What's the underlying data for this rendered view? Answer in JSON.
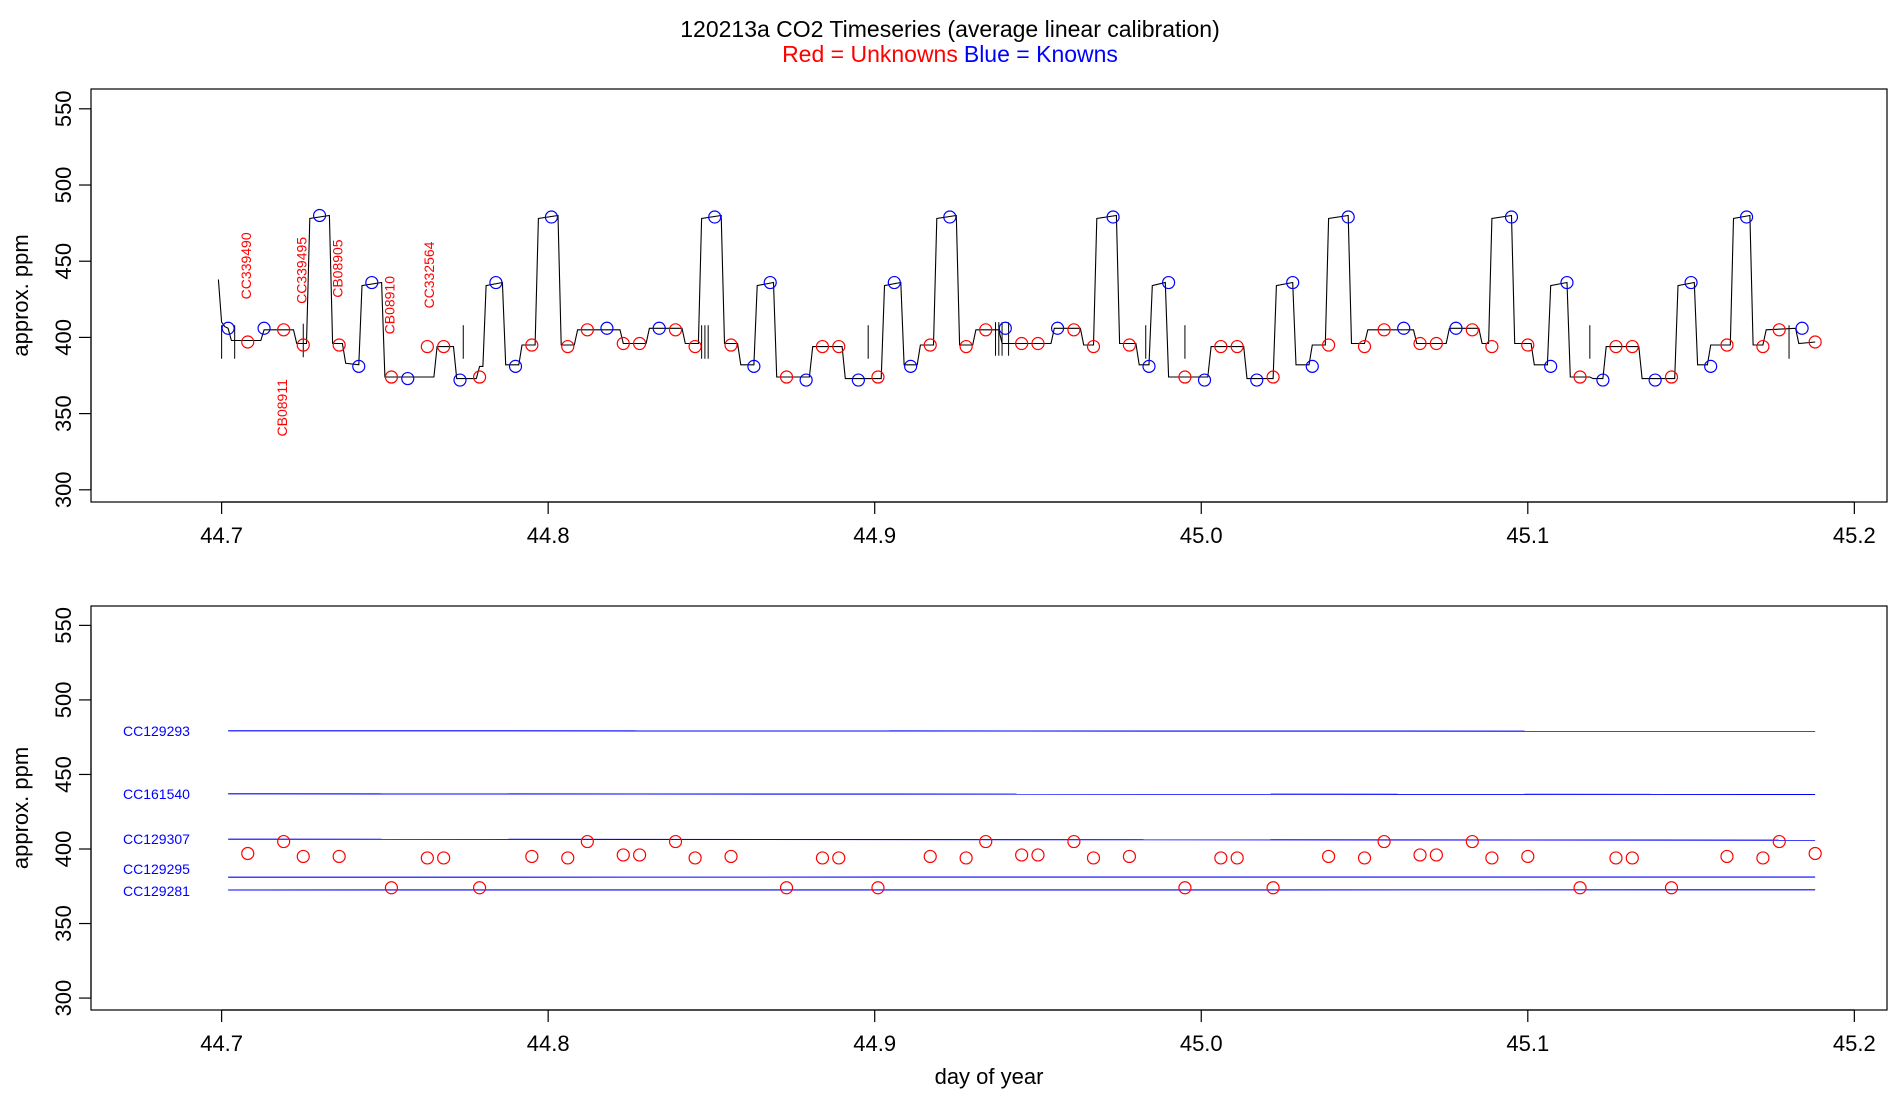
{
  "title": "120213a   CO2 Timeseries (average linear calibration)",
  "subtitle_red": "Red = Unknowns",
  "subtitle_blue": "Blue = Knowns",
  "colors": {
    "unknown": "#ff0000",
    "known": "#0000ff",
    "trace": "#000000"
  },
  "chart_data": [
    {
      "type": "line",
      "panel": "top",
      "xlabel": "",
      "ylabel": "approx. ppm",
      "xlim": [
        44.66,
        45.21
      ],
      "ylim": [
        292,
        563
      ],
      "xticks": [
        "44.7",
        "44.8",
        "44.9",
        "45.0",
        "45.1",
        "45.2"
      ],
      "yticks": [
        "300",
        "350",
        "400",
        "450",
        "500",
        "550"
      ],
      "grid": false,
      "trace": [
        [
          44.699,
          438
        ],
        [
          44.7,
          410
        ],
        [
          44.701,
          407
        ],
        [
          44.702,
          406
        ],
        [
          44.703,
          398
        ],
        [
          44.712,
          398
        ],
        [
          44.713,
          405
        ],
        [
          44.722,
          405
        ],
        [
          44.723,
          396
        ],
        [
          44.726,
          396
        ],
        [
          44.727,
          478
        ],
        [
          44.733,
          480
        ],
        [
          44.734,
          396
        ],
        [
          44.737,
          396
        ],
        [
          44.738,
          383
        ],
        [
          44.742,
          382
        ],
        [
          44.743,
          434
        ],
        [
          44.749,
          436
        ],
        [
          44.75,
          374
        ],
        [
          44.765,
          374
        ],
        [
          44.766,
          394
        ],
        [
          44.771,
          394
        ],
        [
          44.772,
          373
        ],
        [
          44.778,
          373
        ],
        [
          44.779,
          381
        ],
        [
          44.78,
          381
        ],
        [
          44.781,
          434
        ],
        [
          44.786,
          436
        ],
        [
          44.787,
          382
        ],
        [
          44.791,
          382
        ],
        [
          44.792,
          395
        ],
        [
          44.796,
          395
        ],
        [
          44.797,
          478
        ],
        [
          44.803,
          480
        ],
        [
          44.804,
          395
        ],
        [
          44.808,
          395
        ],
        [
          44.809,
          405
        ],
        [
          44.822,
          405
        ],
        [
          44.823,
          396
        ],
        [
          44.83,
          396
        ],
        [
          44.831,
          406
        ],
        [
          44.841,
          406
        ],
        [
          44.842,
          396
        ],
        [
          44.846,
          396
        ],
        [
          44.847,
          478
        ],
        [
          44.853,
          480
        ],
        [
          44.854,
          396
        ],
        [
          44.858,
          396
        ],
        [
          44.859,
          382
        ],
        [
          44.863,
          382
        ],
        [
          44.864,
          434
        ],
        [
          44.869,
          436
        ],
        [
          44.87,
          374
        ],
        [
          44.88,
          374
        ],
        [
          44.881,
          394
        ],
        [
          44.89,
          394
        ],
        [
          44.891,
          373
        ],
        [
          44.902,
          373
        ],
        [
          44.903,
          434
        ],
        [
          44.908,
          436
        ],
        [
          44.909,
          382
        ],
        [
          44.913,
          382
        ],
        [
          44.914,
          395
        ],
        [
          44.918,
          395
        ],
        [
          44.919,
          478
        ],
        [
          44.925,
          480
        ],
        [
          44.926,
          395
        ],
        [
          44.93,
          395
        ],
        [
          44.931,
          405
        ],
        [
          44.938,
          405
        ],
        [
          44.939,
          396
        ],
        [
          44.954,
          396
        ],
        [
          44.955,
          406
        ],
        [
          44.963,
          406
        ],
        [
          44.964,
          395
        ],
        [
          44.967,
          395
        ],
        [
          44.968,
          478
        ],
        [
          44.974,
          480
        ],
        [
          44.975,
          396
        ],
        [
          44.98,
          396
        ],
        [
          44.981,
          382
        ],
        [
          44.984,
          382
        ],
        [
          44.985,
          434
        ],
        [
          44.989,
          436
        ],
        [
          44.99,
          374
        ],
        [
          45.002,
          374
        ],
        [
          45.003,
          394
        ],
        [
          45.013,
          394
        ],
        [
          45.014,
          373
        ],
        [
          45.022,
          373
        ],
        [
          45.023,
          434
        ],
        [
          45.028,
          436
        ],
        [
          45.029,
          382
        ],
        [
          45.033,
          382
        ],
        [
          45.034,
          395
        ],
        [
          45.038,
          395
        ],
        [
          45.039,
          478
        ],
        [
          45.045,
          480
        ],
        [
          45.046,
          396
        ],
        [
          45.05,
          396
        ],
        [
          45.051,
          405
        ],
        [
          45.065,
          405
        ],
        [
          45.066,
          396
        ],
        [
          45.075,
          396
        ],
        [
          45.076,
          406
        ],
        [
          45.085,
          406
        ],
        [
          45.086,
          396
        ],
        [
          45.088,
          396
        ],
        [
          45.089,
          478
        ],
        [
          45.095,
          480
        ],
        [
          45.096,
          396
        ],
        [
          45.101,
          396
        ],
        [
          45.102,
          382
        ],
        [
          45.106,
          382
        ],
        [
          45.107,
          434
        ],
        [
          45.112,
          436
        ],
        [
          45.113,
          374
        ],
        [
          45.119,
          374
        ],
        [
          45.12,
          373
        ],
        [
          45.123,
          373
        ],
        [
          45.124,
          394
        ],
        [
          45.134,
          394
        ],
        [
          45.135,
          373
        ],
        [
          45.145,
          373
        ],
        [
          45.146,
          434
        ],
        [
          45.151,
          436
        ],
        [
          45.152,
          382
        ],
        [
          45.155,
          382
        ],
        [
          45.156,
          395
        ],
        [
          45.162,
          395
        ],
        [
          45.163,
          478
        ],
        [
          45.168,
          480
        ],
        [
          45.169,
          395
        ],
        [
          45.172,
          395
        ],
        [
          45.173,
          405
        ],
        [
          45.182,
          406
        ],
        [
          45.183,
          396
        ],
        [
          45.188,
          397
        ]
      ],
      "spikes": [
        [
          44.7,
          386
        ],
        [
          44.704,
          386
        ],
        [
          44.725,
          387
        ],
        [
          44.774,
          386
        ],
        [
          44.847,
          386
        ],
        [
          44.848,
          386
        ],
        [
          44.849,
          386
        ],
        [
          44.898,
          386
        ],
        [
          44.937,
          388
        ],
        [
          44.938,
          388
        ],
        [
          44.939,
          388
        ],
        [
          44.941,
          388
        ],
        [
          44.983,
          386
        ],
        [
          44.995,
          386
        ],
        [
          45.119,
          386
        ],
        [
          45.18,
          386
        ]
      ],
      "knowns": [
        [
          44.702,
          406
        ],
        [
          44.713,
          406
        ],
        [
          44.73,
          480
        ],
        [
          44.742,
          381
        ],
        [
          44.746,
          436
        ],
        [
          44.757,
          373
        ],
        [
          44.773,
          372
        ],
        [
          44.784,
          436
        ],
        [
          44.79,
          381
        ],
        [
          44.801,
          479
        ],
        [
          44.818,
          406
        ],
        [
          44.834,
          406
        ],
        [
          44.851,
          479
        ],
        [
          44.863,
          381
        ],
        [
          44.868,
          436
        ],
        [
          44.879,
          372
        ],
        [
          44.895,
          372
        ],
        [
          44.906,
          436
        ],
        [
          44.911,
          381
        ],
        [
          44.923,
          479
        ],
        [
          44.94,
          406
        ],
        [
          44.956,
          406
        ],
        [
          44.973,
          479
        ],
        [
          44.984,
          381
        ],
        [
          44.99,
          436
        ],
        [
          45.001,
          372
        ],
        [
          45.017,
          372
        ],
        [
          45.028,
          436
        ],
        [
          45.034,
          381
        ],
        [
          45.045,
          479
        ],
        [
          45.062,
          406
        ],
        [
          45.078,
          406
        ],
        [
          45.095,
          479
        ],
        [
          45.107,
          381
        ],
        [
          45.112,
          436
        ],
        [
          45.123,
          372
        ],
        [
          45.139,
          372
        ],
        [
          45.15,
          436
        ],
        [
          45.156,
          381
        ],
        [
          45.167,
          479
        ],
        [
          45.184,
          406
        ]
      ],
      "unknowns": [
        [
          44.708,
          397
        ],
        [
          44.719,
          405
        ],
        [
          44.725,
          395
        ],
        [
          44.736,
          395
        ],
        [
          44.752,
          374
        ],
        [
          44.763,
          394
        ],
        [
          44.768,
          394
        ],
        [
          44.779,
          374
        ],
        [
          44.795,
          395
        ],
        [
          44.806,
          394
        ],
        [
          44.812,
          405
        ],
        [
          44.823,
          396
        ],
        [
          44.828,
          396
        ],
        [
          44.839,
          405
        ],
        [
          44.845,
          394
        ],
        [
          44.856,
          395
        ],
        [
          44.873,
          374
        ],
        [
          44.884,
          394
        ],
        [
          44.889,
          394
        ],
        [
          44.901,
          374
        ],
        [
          44.917,
          395
        ],
        [
          44.928,
          394
        ],
        [
          44.934,
          405
        ],
        [
          44.945,
          396
        ],
        [
          44.95,
          396
        ],
        [
          44.961,
          405
        ],
        [
          44.967,
          394
        ],
        [
          44.978,
          395
        ],
        [
          44.995,
          374
        ],
        [
          45.006,
          394
        ],
        [
          45.011,
          394
        ],
        [
          45.022,
          374
        ],
        [
          45.039,
          395
        ],
        [
          45.05,
          394
        ],
        [
          45.056,
          405
        ],
        [
          45.067,
          396
        ],
        [
          45.072,
          396
        ],
        [
          45.083,
          405
        ],
        [
          45.089,
          394
        ],
        [
          45.1,
          395
        ],
        [
          45.116,
          374
        ],
        [
          45.127,
          394
        ],
        [
          45.132,
          394
        ],
        [
          45.144,
          374
        ],
        [
          45.161,
          395
        ],
        [
          45.172,
          394
        ],
        [
          45.177,
          405
        ],
        [
          45.188,
          397
        ]
      ],
      "annotations": [
        {
          "text": "CC339490",
          "x": 44.709,
          "y": 425
        },
        {
          "text": "CB08911",
          "x": 44.72,
          "y": 335
        },
        {
          "text": "CC339495",
          "x": 44.726,
          "y": 422
        },
        {
          "text": "CB08905",
          "x": 44.737,
          "y": 426
        },
        {
          "text": "CB08910",
          "x": 44.753,
          "y": 402
        },
        {
          "text": "CC332564",
          "x": 44.765,
          "y": 419
        }
      ]
    },
    {
      "type": "scatter",
      "panel": "bottom",
      "xlabel": "day of year",
      "ylabel": "approx. ppm",
      "xlim": [
        44.66,
        45.21
      ],
      "ylim": [
        292,
        563
      ],
      "xticks": [
        "44.7",
        "44.8",
        "44.9",
        "45.0",
        "45.1",
        "45.2"
      ],
      "yticks": [
        "300",
        "350",
        "400",
        "450",
        "500",
        "550"
      ],
      "grid": false,
      "reference_lines": [
        {
          "name": "CC129293",
          "y_start": 479.3,
          "y_end": 479.0
        },
        {
          "name": "CC161540",
          "y_start": 437.0,
          "y_end": 436.6
        },
        {
          "name": "CC129307",
          "y_start": 406.6,
          "y_end": 405.9
        },
        {
          "name": "CC129295",
          "y_start": 381.1,
          "y_end": 381.2
        },
        {
          "name": "CC129281",
          "y_start": 372.5,
          "y_end": 372.6
        }
      ],
      "x_start": 44.702,
      "x_end": 45.188,
      "unknowns": [
        [
          44.708,
          397
        ],
        [
          44.719,
          405
        ],
        [
          44.725,
          395
        ],
        [
          44.736,
          395
        ],
        [
          44.752,
          374
        ],
        [
          44.763,
          394
        ],
        [
          44.768,
          394
        ],
        [
          44.779,
          374
        ],
        [
          44.795,
          395
        ],
        [
          44.806,
          394
        ],
        [
          44.812,
          405
        ],
        [
          44.823,
          396
        ],
        [
          44.828,
          396
        ],
        [
          44.839,
          405
        ],
        [
          44.845,
          394
        ],
        [
          44.856,
          395
        ],
        [
          44.873,
          374
        ],
        [
          44.884,
          394
        ],
        [
          44.889,
          394
        ],
        [
          44.901,
          374
        ],
        [
          44.917,
          395
        ],
        [
          44.928,
          394
        ],
        [
          44.934,
          405
        ],
        [
          44.945,
          396
        ],
        [
          44.95,
          396
        ],
        [
          44.961,
          405
        ],
        [
          44.967,
          394
        ],
        [
          44.978,
          395
        ],
        [
          44.995,
          374
        ],
        [
          45.006,
          394
        ],
        [
          45.011,
          394
        ],
        [
          45.022,
          374
        ],
        [
          45.039,
          395
        ],
        [
          45.05,
          394
        ],
        [
          45.056,
          405
        ],
        [
          45.067,
          396
        ],
        [
          45.072,
          396
        ],
        [
          45.083,
          405
        ],
        [
          45.089,
          394
        ],
        [
          45.1,
          395
        ],
        [
          45.116,
          374
        ],
        [
          45.127,
          394
        ],
        [
          45.132,
          394
        ],
        [
          45.144,
          374
        ],
        [
          45.161,
          395
        ],
        [
          45.172,
          394
        ],
        [
          45.177,
          405
        ],
        [
          45.188,
          397
        ]
      ]
    }
  ]
}
